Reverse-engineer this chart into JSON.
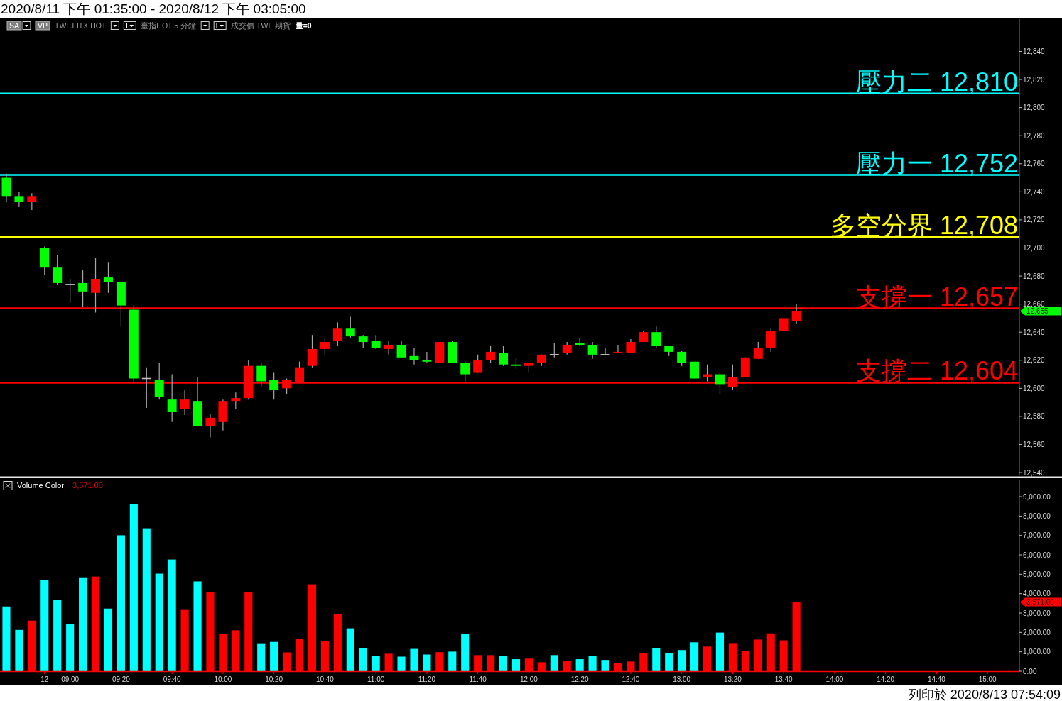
{
  "chart_data": [
    {
      "type": "candlestick",
      "title": "2020/8/11 下午 01:35:00 - 2020/8/12 下午 03:05:00",
      "subtitle": "SA  VP  TWF.FITX HOT  臺指HOT 5 分鐘  成交價 TWF 期貨  量=0",
      "categories": [
        null,
        null,
        null,
        null,
        null,
        null,
        null,
        null,
        null,
        null,
        null,
        null,
        null,
        null,
        null,
        null,
        null,
        null,
        null,
        null,
        null,
        null,
        null,
        null,
        null,
        null,
        null,
        null,
        null,
        null,
        null,
        null,
        null,
        null,
        null,
        null,
        null,
        null,
        null,
        null,
        null,
        null,
        null,
        null,
        null,
        null,
        null,
        null,
        null,
        null,
        null,
        null,
        null,
        null,
        null,
        null,
        null,
        null,
        null,
        null,
        null,
        null,
        null,
        null,
        null,
        null,
        null,
        null,
        null,
        null,
        null,
        null,
        null,
        null,
        null,
        null,
        null,
        null,
        null,
        null
      ],
      "ohlc": [
        [
          12750,
          12753,
          12733,
          12737
        ],
        [
          12737,
          12740,
          12729,
          12733
        ],
        [
          12733,
          12739,
          12727,
          12737
        ],
        [
          12700,
          12701,
          12681,
          12686
        ],
        [
          12686,
          12695,
          12674,
          12675
        ],
        [
          12674,
          12678,
          12661,
          12674
        ],
        [
          12675,
          12684,
          12658,
          12669
        ],
        [
          12668,
          12693,
          12654,
          12678
        ],
        [
          12679,
          12690,
          12668,
          12676
        ],
        [
          12676,
          12676,
          12644,
          12659
        ],
        [
          12656,
          12659,
          12604,
          12607
        ],
        [
          12607,
          12615,
          12586,
          12607
        ],
        [
          12606,
          12618,
          12592,
          12594
        ],
        [
          12592,
          12610,
          12576,
          12583
        ],
        [
          12585,
          12599,
          12581,
          12592
        ],
        [
          12591,
          12608,
          12573,
          12573
        ],
        [
          12573,
          12582,
          12565,
          12579
        ],
        [
          12576,
          12592,
          12570,
          12591
        ],
        [
          12591,
          12597,
          12585,
          12593
        ],
        [
          12593,
          12620,
          12592,
          12616
        ],
        [
          12616,
          12618,
          12601,
          12605
        ],
        [
          12606,
          12611,
          12592,
          12599
        ],
        [
          12600,
          12607,
          12596,
          12606
        ],
        [
          12604,
          12619,
          12604,
          12615
        ],
        [
          12616,
          12638,
          12615,
          12628
        ],
        [
          12628,
          12635,
          12624,
          12633
        ],
        [
          12634,
          12647,
          12630,
          12643
        ],
        [
          12643,
          12651,
          12636,
          12637
        ],
        [
          12637,
          12638,
          12629,
          12633
        ],
        [
          12634,
          12638,
          12628,
          12629
        ],
        [
          12628,
          12634,
          12624,
          12631
        ],
        [
          12631,
          12634,
          12622,
          12622
        ],
        [
          12623,
          12629,
          12617,
          12620
        ],
        [
          12620,
          12626,
          12618,
          12619
        ],
        [
          12618,
          12633,
          12618,
          12633
        ],
        [
          12633,
          12634,
          12618,
          12618
        ],
        [
          12618,
          12619,
          12604,
          12610
        ],
        [
          12611,
          12624,
          12611,
          12620
        ],
        [
          12620,
          12630,
          12618,
          12626
        ],
        [
          12625,
          12630,
          12616,
          12617
        ],
        [
          12617,
          12622,
          12614,
          12616
        ],
        [
          12616,
          12618,
          12611,
          12618
        ],
        [
          12618,
          12624,
          12616,
          12624
        ],
        [
          12624,
          12632,
          12622,
          12624
        ],
        [
          12625,
          12633,
          12624,
          12631
        ],
        [
          12632,
          12636,
          12630,
          12631
        ],
        [
          12631,
          12633,
          12621,
          12624
        ],
        [
          12624,
          12629,
          12624,
          12624
        ],
        [
          12625,
          12631,
          12625,
          12626
        ],
        [
          12625,
          12635,
          12625,
          12633
        ],
        [
          12633,
          12641,
          12633,
          12640
        ],
        [
          12640,
          12644,
          12629,
          12630
        ],
        [
          12630,
          12630,
          12623,
          12626
        ],
        [
          12626,
          12627,
          12616,
          12618
        ],
        [
          12619,
          12619,
          12607,
          12607
        ],
        [
          12608,
          12617,
          12605,
          12610
        ],
        [
          12610,
          12611,
          12596,
          12603
        ],
        [
          12601,
          12617,
          12599,
          12608
        ],
        [
          12608,
          12622,
          12608,
          12622
        ],
        [
          12621,
          12633,
          12621,
          12629
        ],
        [
          12629,
          12643,
          12626,
          12641
        ],
        [
          12641,
          12650,
          12641,
          12650
        ],
        [
          12648,
          12660,
          12646,
          12655
        ],
        null,
        null,
        null,
        null,
        null,
        null,
        null,
        null,
        null,
        null,
        null,
        null,
        null,
        null,
        null,
        null,
        null
      ],
      "colors": [
        "#00ff00",
        "#00ff00",
        "#ff0000",
        "#00ff00",
        "#00ff00",
        "#c0c0c0",
        "#00ff00",
        "#ff0000",
        "#00ff00",
        "#00ff00",
        "#00ff00",
        "#c0c0c0",
        "#00ff00",
        "#00ff00",
        "#ff0000",
        "#00ff00",
        "#ff0000",
        "#ff0000",
        "#ff0000",
        "#ff0000",
        "#00ff00",
        "#00ff00",
        "#ff0000",
        "#ff0000",
        "#ff0000",
        "#ff0000",
        "#ff0000",
        "#00ff00",
        "#00ff00",
        "#00ff00",
        "#ff0000",
        "#00ff00",
        "#00ff00",
        "#00ff00",
        "#ff0000",
        "#00ff00",
        "#00ff00",
        "#ff0000",
        "#ff0000",
        "#00ff00",
        "#00ff00",
        "#ff0000",
        "#ff0000",
        "#c0c0c0",
        "#ff0000",
        "#00ff00",
        "#00ff00",
        "#c0c0c0",
        "#ff0000",
        "#ff0000",
        "#ff0000",
        "#00ff00",
        "#00ff00",
        "#00ff00",
        "#00ff00",
        "#ff0000",
        "#00ff00",
        "#ff0000",
        "#ff0000",
        "#ff0000",
        "#ff0000",
        "#ff0000",
        "#ff0000",
        null,
        null,
        null,
        null,
        null,
        null,
        null,
        null,
        null,
        null,
        null,
        null,
        null,
        null,
        null,
        null,
        null
      ],
      "ylim": [
        12538,
        12863
      ],
      "yticks": [
        {
          "value": 12540,
          "label": "12,540"
        },
        {
          "value": 12560,
          "label": "12,560"
        },
        {
          "value": 12580,
          "label": "12,580"
        },
        {
          "value": 12600,
          "label": "12,600"
        },
        {
          "value": 12620,
          "label": "12,620"
        },
        {
          "value": 12640,
          "label": "12,640"
        },
        {
          "value": 12660,
          "label": "12,660"
        },
        {
          "value": 12680,
          "label": "12,680"
        },
        {
          "value": 12700,
          "label": "12,700"
        },
        {
          "value": 12720,
          "label": "12,720"
        },
        {
          "value": 12740,
          "label": "12,740"
        },
        {
          "value": 12760,
          "label": "12,760"
        },
        {
          "value": 12780,
          "label": "12,780"
        },
        {
          "value": 12800,
          "label": "12,800"
        },
        {
          "value": 12820,
          "label": "12,820"
        },
        {
          "value": 12840,
          "label": "12,840"
        }
      ],
      "tick_labels": "y",
      "ref_lines": [
        {
          "axis": "y",
          "value": 12810,
          "label": "壓力二 12,810",
          "color": "#00ffff"
        },
        {
          "axis": "y",
          "value": 12752,
          "label": "壓力一 12,752",
          "color": "#00ffff"
        },
        {
          "axis": "y",
          "value": 12708,
          "label": "多空分界 12,708",
          "color": "#ffff00"
        },
        {
          "axis": "y",
          "value": 12657,
          "label": "支撐一 12,657",
          "color": "#ff0000"
        },
        {
          "axis": "y",
          "value": 12604,
          "label": "支撐二 12,604",
          "color": "#ff0000"
        }
      ],
      "annotations": [
        "12,655"
      ]
    },
    {
      "type": "bar",
      "title": "Volume Color",
      "subtitle": "3,571.00",
      "categories": [
        null,
        null,
        null,
        "12",
        null,
        "09:00",
        null,
        null,
        null,
        "09:20",
        null,
        null,
        null,
        "09:40",
        null,
        null,
        null,
        "10:00",
        null,
        null,
        null,
        "10:20",
        null,
        null,
        null,
        "10:40",
        null,
        null,
        null,
        "11:00",
        null,
        null,
        null,
        "11:20",
        null,
        null,
        null,
        "11:40",
        null,
        null,
        null,
        "12:00",
        null,
        null,
        null,
        "12:20",
        null,
        null,
        null,
        "12:40",
        null,
        null,
        null,
        "13:00",
        null,
        null,
        null,
        "13:20",
        null,
        null,
        null,
        "13:40",
        null,
        null,
        null,
        "14:00",
        null,
        null,
        null,
        "14:20",
        null,
        null,
        null,
        "14:40",
        null,
        null,
        null,
        "15:00",
        null,
        null
      ],
      "values": [
        3340,
        2130,
        2610,
        4690,
        3660,
        2430,
        4840,
        4880,
        3230,
        7010,
        8620,
        7370,
        5030,
        5760,
        3160,
        4630,
        4070,
        1920,
        2110,
        4070,
        1440,
        1510,
        970,
        1660,
        4480,
        1550,
        2950,
        2210,
        1190,
        780,
        900,
        750,
        1150,
        860,
        980,
        1010,
        1930,
        830,
        830,
        790,
        620,
        650,
        460,
        830,
        540,
        620,
        790,
        580,
        420,
        500,
        940,
        1190,
        940,
        1090,
        1490,
        1270,
        1990,
        1450,
        1050,
        1630,
        1950,
        1590,
        3571,
        null,
        null,
        null,
        null,
        null,
        null,
        null,
        null,
        null,
        null,
        null,
        null,
        null,
        null,
        null,
        null,
        null
      ],
      "colors": [
        "#00ffff",
        "#00ffff",
        "#ff0000",
        "#00ffff",
        "#00ffff",
        "#00ffff",
        "#00ffff",
        "#ff0000",
        "#00ffff",
        "#00ffff",
        "#00ffff",
        "#00ffff",
        "#00ffff",
        "#00ffff",
        "#ff0000",
        "#00ffff",
        "#ff0000",
        "#ff0000",
        "#ff0000",
        "#ff0000",
        "#00ffff",
        "#00ffff",
        "#ff0000",
        "#ff0000",
        "#ff0000",
        "#ff0000",
        "#ff0000",
        "#00ffff",
        "#00ffff",
        "#00ffff",
        "#ff0000",
        "#00ffff",
        "#00ffff",
        "#00ffff",
        "#ff0000",
        "#00ffff",
        "#00ffff",
        "#ff0000",
        "#ff0000",
        "#00ffff",
        "#00ffff",
        "#ff0000",
        "#ff0000",
        "#00ffff",
        "#ff0000",
        "#00ffff",
        "#00ffff",
        "#00ffff",
        "#ff0000",
        "#ff0000",
        "#ff0000",
        "#00ffff",
        "#00ffff",
        "#00ffff",
        "#00ffff",
        "#ff0000",
        "#00ffff",
        "#ff0000",
        "#ff0000",
        "#ff0000",
        "#ff0000",
        "#ff0000",
        "#ff0000",
        null,
        null,
        null,
        null,
        null,
        null,
        null,
        null,
        null,
        null,
        null,
        null,
        null,
        null,
        null,
        null,
        null
      ],
      "ylim": [
        0,
        9880
      ],
      "yticks": [
        {
          "value": 0,
          "label": "0.00"
        },
        {
          "value": 1000,
          "label": "1,000.00"
        },
        {
          "value": 2000,
          "label": "2,000.00"
        },
        {
          "value": 3000,
          "label": "3,000.00"
        },
        {
          "value": 4000,
          "label": "4,000.00"
        },
        {
          "value": 5000,
          "label": "5,000.00"
        },
        {
          "value": 6000,
          "label": "6,000.00"
        },
        {
          "value": 7000,
          "label": "7,000.00"
        },
        {
          "value": 8000,
          "label": "8,000.00"
        },
        {
          "value": 9000,
          "label": "9,000.00"
        }
      ],
      "annotations": [
        "3,571.00",
        "列印於 2020/8/13 07:54:09"
      ]
    }
  ]
}
